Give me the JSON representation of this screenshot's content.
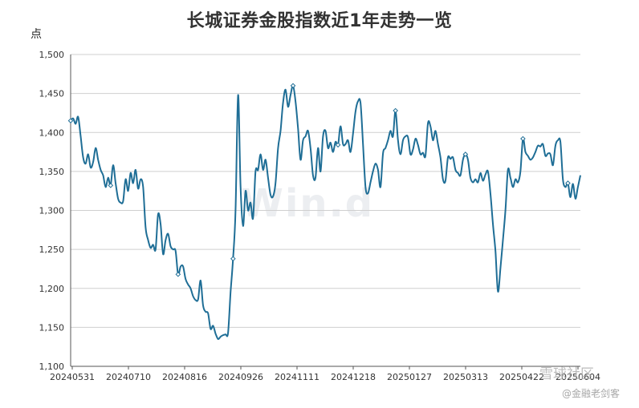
{
  "chart_data": {
    "type": "line",
    "title": "长城证券金股指数近1年走势一览",
    "ylabel": "点",
    "xlabel": "",
    "ylim": [
      1100,
      1500
    ],
    "yticks": [
      1100,
      1150,
      1200,
      1250,
      1300,
      1350,
      1400,
      1450,
      1500
    ],
    "ytick_labels": [
      "1,100",
      "1,150",
      "1,200",
      "1,250",
      "1,300",
      "1,350",
      "1,400",
      "1,450",
      "1,500"
    ],
    "xtick_labels": [
      "20240531",
      "20240710",
      "20240816",
      "20240926",
      "20241111",
      "20241218",
      "20250127",
      "20250313",
      "20250422",
      "20250604"
    ],
    "grid": true,
    "line_color": "#1f6e96",
    "series": [
      {
        "values": [
          1415,
          1418,
          1411,
          1420,
          1395,
          1368,
          1360,
          1372,
          1355,
          1362,
          1380,
          1365,
          1352,
          1345,
          1330,
          1342,
          1332,
          1358,
          1335,
          1315,
          1310,
          1312,
          1340,
          1325,
          1348,
          1335,
          1352,
          1328,
          1340,
          1330,
          1278,
          1262,
          1252,
          1256,
          1250,
          1295,
          1282,
          1244,
          1262,
          1270,
          1254,
          1250,
          1248,
          1218,
          1228,
          1228,
          1212,
          1205,
          1200,
          1190,
          1185,
          1186,
          1210,
          1178,
          1170,
          1168,
          1148,
          1152,
          1142,
          1135,
          1138,
          1140,
          1141,
          1143,
          1195,
          1238,
          1300,
          1448,
          1330,
          1280,
          1325,
          1300,
          1310,
          1290,
          1350,
          1352,
          1372,
          1352,
          1365,
          1342,
          1320,
          1318,
          1335,
          1380,
          1402,
          1438,
          1455,
          1433,
          1448,
          1460,
          1440,
          1405,
          1365,
          1390,
          1395,
          1402,
          1380,
          1345,
          1342,
          1380,
          1350,
          1395,
          1402,
          1380,
          1387,
          1375,
          1388,
          1384,
          1408,
          1385,
          1385,
          1390,
          1375,
          1398,
          1427,
          1440,
          1438,
          1385,
          1330,
          1322,
          1336,
          1350,
          1360,
          1352,
          1330,
          1373,
          1380,
          1390,
          1402,
          1395,
          1428,
          1390,
          1372,
          1390,
          1395,
          1394,
          1372,
          1378,
          1392,
          1384,
          1372,
          1374,
          1370,
          1412,
          1408,
          1390,
          1402,
          1385,
          1368,
          1340,
          1338,
          1368,
          1366,
          1368,
          1352,
          1348,
          1345,
          1365,
          1372,
          1365,
          1342,
          1336,
          1340,
          1336,
          1348,
          1338,
          1346,
          1350,
          1322,
          1282,
          1248,
          1196,
          1226,
          1262,
          1300,
          1352,
          1342,
          1330,
          1340,
          1336,
          1350,
          1392,
          1375,
          1370,
          1365,
          1368,
          1375,
          1383,
          1382,
          1385,
          1370,
          1373,
          1372,
          1358,
          1383,
          1390,
          1388,
          1340,
          1330,
          1335,
          1317,
          1334,
          1315,
          1330,
          1345
        ]
      }
    ],
    "marked_points": [
      0,
      16,
      43,
      65,
      89,
      107,
      130,
      158,
      181,
      199
    ]
  },
  "watermark": "Win.d",
  "source": {
    "line1": "雪球社区",
    "line2": "@金融老剑客"
  }
}
